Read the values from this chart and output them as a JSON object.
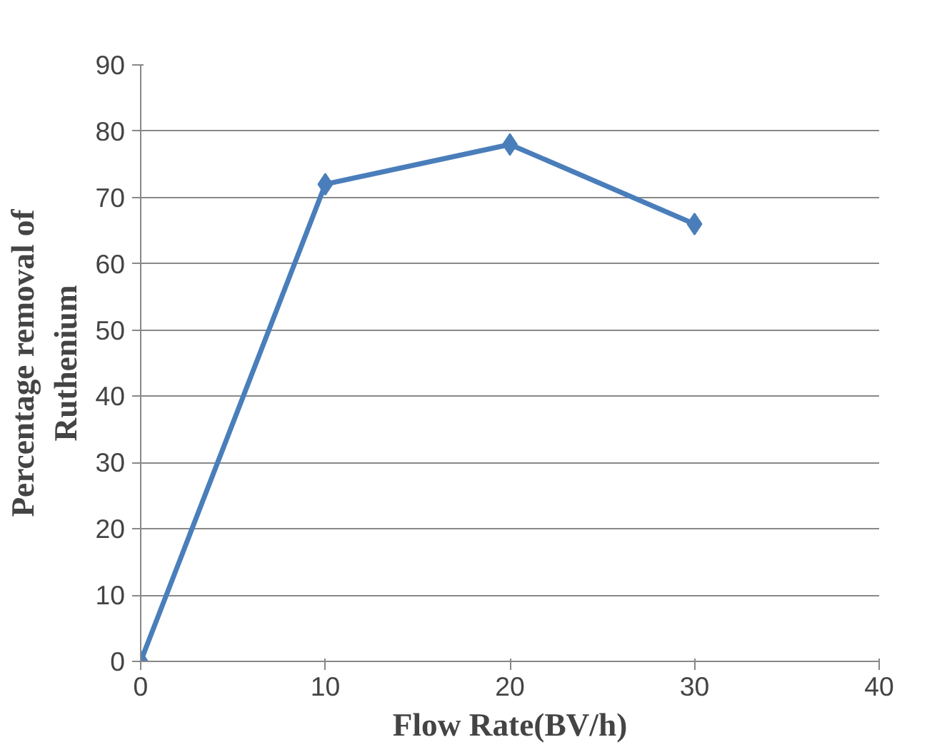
{
  "chart_data": {
    "type": "line",
    "xlabel": "Flow Rate(BV/h)",
    "ylabel": "Percentage removal of Ruthenium",
    "x": [
      0,
      10,
      20,
      30
    ],
    "series": [
      {
        "color": "#4a7ebb",
        "values": [
          0,
          72,
          78,
          66
        ]
      }
    ],
    "xlim": [
      0,
      40
    ],
    "xticks": [
      0,
      10,
      20,
      30,
      40
    ],
    "ylim": [
      0,
      90
    ],
    "yticks": [
      0,
      10,
      20,
      30,
      40,
      50,
      60,
      70,
      80,
      90
    ],
    "grid": "y",
    "marker": "diamond",
    "line_style": "solid"
  }
}
